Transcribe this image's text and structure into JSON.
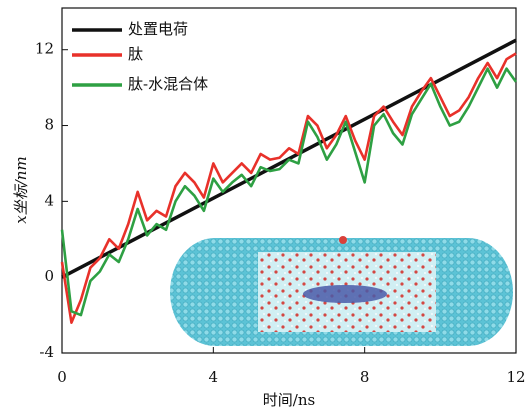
{
  "chart_data": {
    "type": "line",
    "x_label": "时间/ns",
    "y_label": "x坐标/nm",
    "xlim": [
      0,
      12
    ],
    "ylim": [
      -4,
      14.2
    ],
    "xticks": [
      0,
      4,
      8,
      12
    ],
    "yticks": [
      -4,
      0,
      4,
      8,
      12
    ],
    "legend": "upper left",
    "x": [
      0,
      0.25,
      0.5,
      0.75,
      1,
      1.25,
      1.5,
      1.75,
      2,
      2.25,
      2.5,
      2.75,
      3,
      3.25,
      3.5,
      3.75,
      4,
      4.25,
      4.5,
      4.75,
      5,
      5.25,
      5.5,
      5.75,
      6,
      6.25,
      6.5,
      6.75,
      7,
      7.25,
      7.5,
      7.75,
      8,
      8.25,
      8.5,
      8.75,
      9,
      9.25,
      9.5,
      9.75,
      10,
      10.25,
      10.5,
      10.75,
      11,
      11.25,
      11.5,
      11.75,
      12
    ],
    "series": [
      {
        "name": "处置电荷",
        "color": "#111111",
        "x": [
          0,
          12
        ],
        "values": [
          0,
          12.5
        ]
      },
      {
        "name": "肽",
        "color": "#e8312a",
        "values": [
          0.8,
          -2.4,
          -1.2,
          0.5,
          1,
          2,
          1.5,
          2.8,
          4.5,
          3,
          3.5,
          3.2,
          4.8,
          5.5,
          5,
          4.2,
          6,
          5,
          5.5,
          6,
          5.5,
          6.5,
          6.2,
          6.3,
          6.8,
          6.5,
          8.5,
          8,
          6.8,
          7.5,
          8.5,
          7.2,
          6.2,
          8.5,
          9,
          8.2,
          7.5,
          9,
          9.8,
          10.5,
          9.5,
          8.5,
          8.8,
          9.5,
          10.5,
          11.3,
          10.5,
          11.5,
          11.8
        ]
      },
      {
        "name": "肽-水混合体",
        "color": "#2ea043",
        "values": [
          2.5,
          -1.8,
          -2,
          -0.2,
          0.3,
          1.2,
          0.8,
          2,
          3.6,
          2.2,
          2.8,
          2.5,
          4,
          4.8,
          4.3,
          3.5,
          5.2,
          4.5,
          5,
          5.4,
          4.8,
          5.8,
          5.6,
          5.7,
          6.2,
          6,
          8.2,
          7.4,
          6.2,
          7,
          8.2,
          6.6,
          5,
          8,
          8.6,
          7.6,
          7,
          8.6,
          9.4,
          10.2,
          9,
          8,
          8.2,
          9,
          10,
          11,
          10,
          11,
          10.3
        ]
      }
    ]
  }
}
